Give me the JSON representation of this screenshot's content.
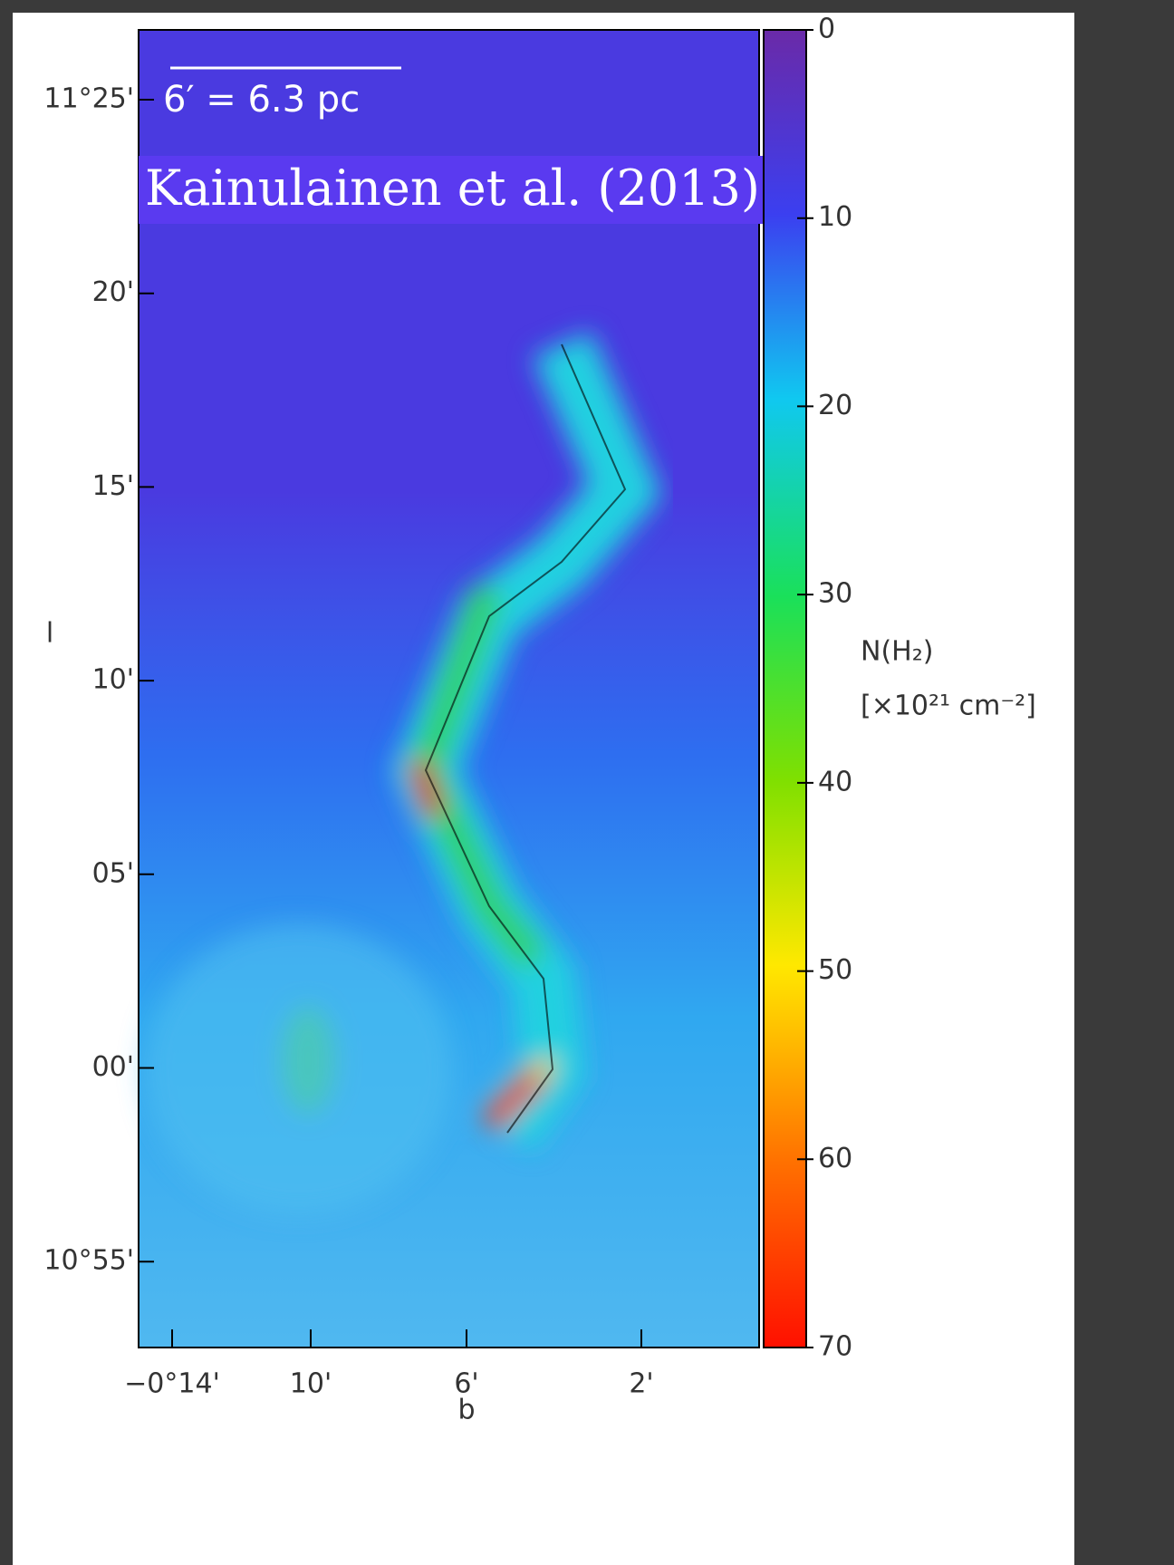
{
  "figure": {
    "credit": "Kainulainen et al. (2013)",
    "scale_bar": "6′ = 6.3 pc",
    "y_axis_label": "l",
    "y_ticks": [
      "11°25'",
      "20'",
      "15'",
      "10'",
      "05'",
      "00'",
      "10°55'"
    ],
    "x_axis_label": "b",
    "x_ticks": [
      "−0°14'",
      "10'",
      "6'",
      "2'"
    ]
  },
  "colorbar": {
    "label": "N(H₂)",
    "unit": "[×10²¹ cm⁻²]",
    "lim": [
      0,
      70
    ],
    "ticks": [
      0,
      10,
      20,
      30,
      40,
      50,
      60,
      70
    ]
  }
}
